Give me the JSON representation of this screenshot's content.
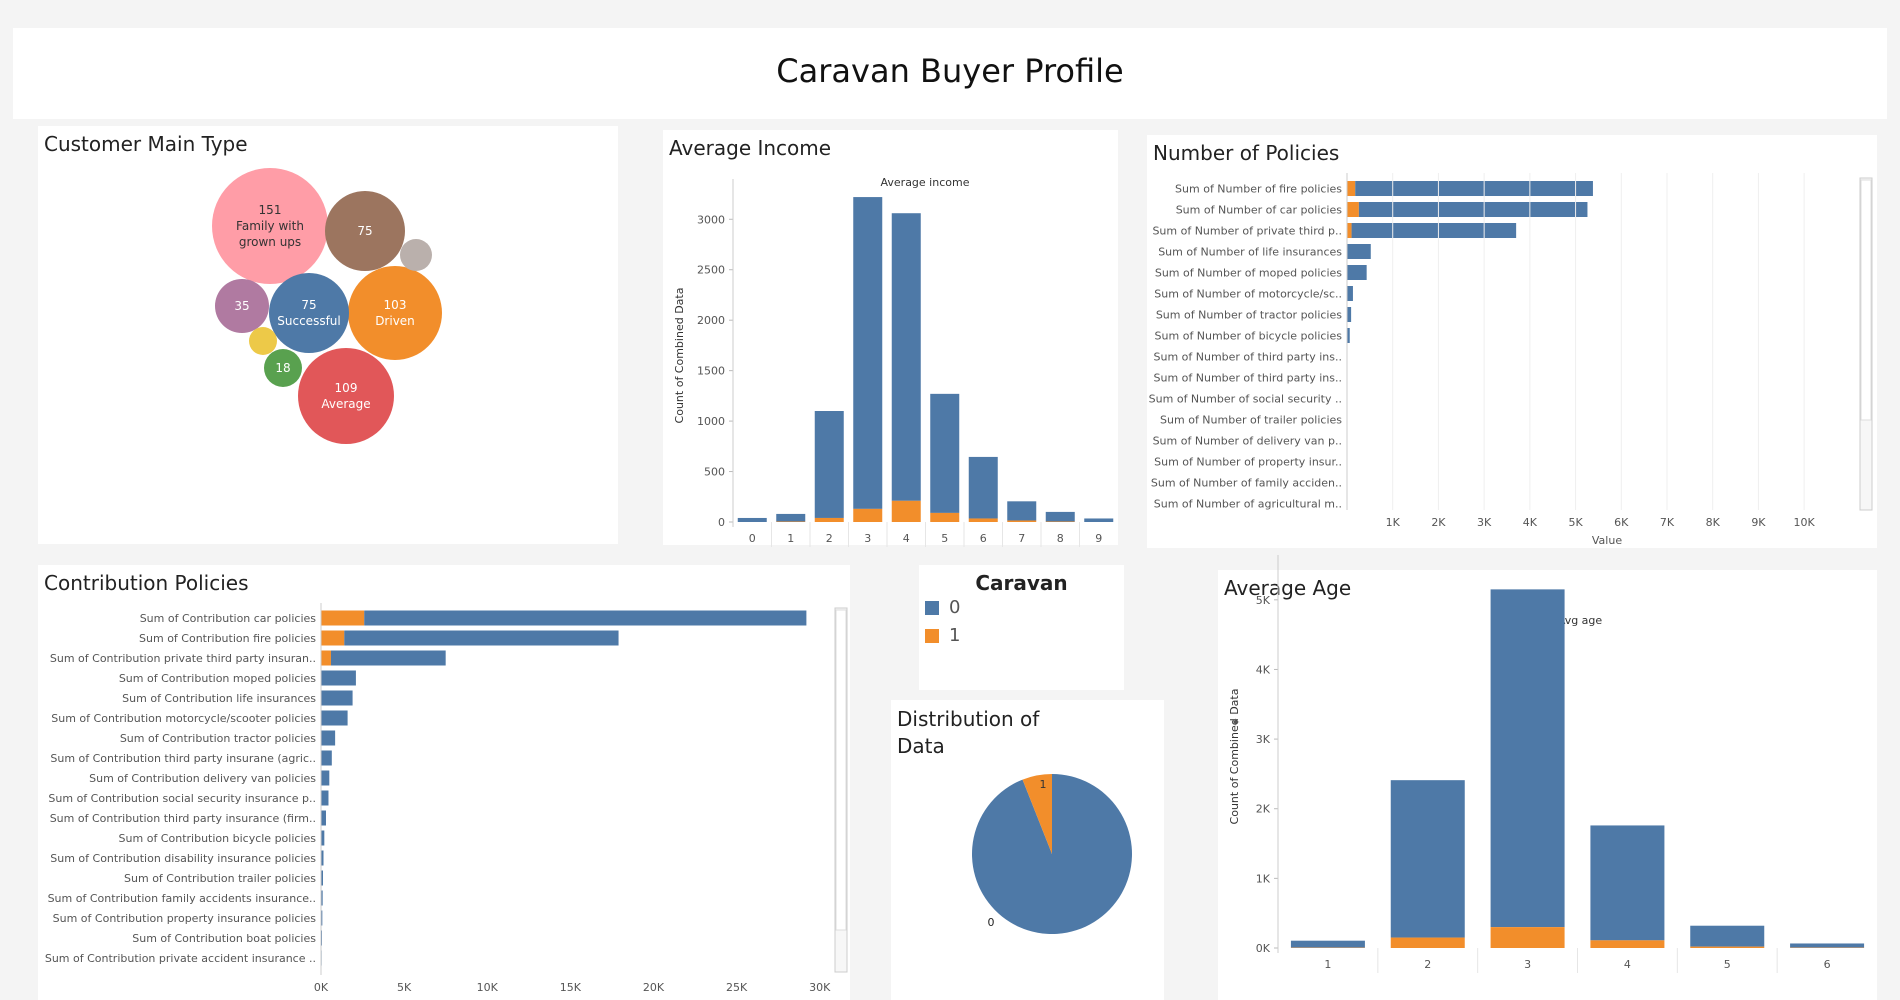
{
  "dashboard_title": "Caravan Buyer Profile",
  "colors": {
    "class0": "#4e79a7",
    "class1": "#f28e2b"
  },
  "customer_main_type": {
    "title": "Customer Main Type",
    "bubbles": [
      {
        "value": "151",
        "label": "Family with grown ups",
        "color": "#ff9da7"
      },
      {
        "value": "109",
        "label": "Average",
        "color": "#e15759"
      },
      {
        "value": "103",
        "label": "Driven",
        "color": "#f28e2b"
      },
      {
        "value": "75",
        "label": "Successful",
        "color": "#4e79a7"
      },
      {
        "value": "75",
        "label": "",
        "color": "#9c755f"
      },
      {
        "value": "35",
        "label": "",
        "color": "#b07aa1"
      },
      {
        "value": "18",
        "label": "",
        "color": "#59a14f"
      },
      {
        "value": "",
        "label": "",
        "color": "#edc948"
      },
      {
        "value": "",
        "label": "",
        "color": "#bab0ac"
      }
    ]
  },
  "average_income": {
    "title": "Average Income",
    "chart_data": {
      "type": "bar",
      "stacked": true,
      "title": "Average income",
      "ylabel": "Count of Combined Data",
      "categories": [
        "0",
        "1",
        "2",
        "3",
        "4",
        "5",
        "6",
        "7",
        "8",
        "9"
      ],
      "series": [
        {
          "name": "0",
          "values": [
            40,
            75,
            1060,
            3090,
            2850,
            1180,
            610,
            190,
            95,
            35
          ]
        },
        {
          "name": "1",
          "values": [
            0,
            5,
            40,
            130,
            210,
            90,
            35,
            15,
            5,
            0
          ]
        }
      ],
      "ylim": [
        0,
        3300
      ],
      "yticks": [
        "0",
        "500",
        "1000",
        "1500",
        "2000",
        "2500",
        "3000"
      ]
    }
  },
  "number_of_policies": {
    "title": "Number of Policies",
    "chart_data": {
      "type": "bar",
      "orientation": "horizontal",
      "stacked": true,
      "xlabel": "Value",
      "categories": [
        "Sum of Number of fire policies",
        "Sum of Number of car policies",
        "Sum of Number of private third p..",
        "Sum of Number of life insurances",
        "Sum of Number of moped policies",
        "Sum of Number of motorcycle/sc..",
        "Sum of Number of tractor policies",
        "Sum of Number of bicycle policies",
        "Sum of Number of third party ins..",
        "Sum of Number of third party ins..",
        "Sum of Number of social security ..",
        "Sum of Number of trailer policies",
        "Sum of Number of delivery van p..",
        "Sum of Number of property insur..",
        "Sum of Number of family acciden..",
        "Sum of Number of agricultural m.."
      ],
      "series": [
        {
          "name": "1",
          "values": [
            180,
            260,
            100,
            0,
            0,
            0,
            0,
            0,
            0,
            0,
            0,
            0,
            0,
            0,
            0,
            0
          ]
        },
        {
          "name": "0",
          "values": [
            5200,
            5000,
            3600,
            520,
            430,
            130,
            90,
            60,
            0,
            0,
            0,
            0,
            0,
            0,
            0,
            0
          ]
        }
      ],
      "xlim": [
        0,
        10500
      ],
      "xticks": [
        "1K",
        "2K",
        "3K",
        "4K",
        "5K",
        "6K",
        "7K",
        "8K",
        "9K",
        "10K"
      ]
    }
  },
  "contribution_policies": {
    "title": "Contribution Policies",
    "chart_data": {
      "type": "bar",
      "orientation": "horizontal",
      "stacked": true,
      "categories": [
        "Sum of Contribution car policies",
        "Sum of Contribution fire policies",
        "Sum of Contribution private third party insuran..",
        "Sum of Contribution moped policies",
        "Sum of Contribution life insurances",
        "Sum of Contribution motorcycle/scooter policies",
        "Sum of Contribution tractor policies",
        "Sum of Contribution third party insurane (agric..",
        "Sum of Contribution delivery van policies",
        "Sum of Contribution social security insurance p..",
        "Sum of Contribution third party insurance (firm..",
        "Sum of Contribution bicycle policies",
        "Sum of Contribution disability insurance policies",
        "Sum of Contribution trailer policies",
        "Sum of Contribution family accidents insurance..",
        "Sum of Contribution property insurance policies",
        "Sum of Contribution boat policies",
        "Sum of Contribution private accident insurance .."
      ],
      "series": [
        {
          "name": "1",
          "values": [
            2600,
            1400,
            600,
            0,
            0,
            0,
            0,
            0,
            0,
            0,
            0,
            0,
            0,
            0,
            0,
            0,
            0,
            0
          ]
        },
        {
          "name": "0",
          "values": [
            26600,
            16500,
            6900,
            2100,
            1900,
            1600,
            850,
            650,
            500,
            450,
            300,
            200,
            150,
            120,
            100,
            80,
            60,
            40
          ]
        }
      ],
      "xlim": [
        0,
        30500
      ],
      "xticks": [
        "0K",
        "5K",
        "10K",
        "15K",
        "20K",
        "25K",
        "30K"
      ]
    }
  },
  "caravan_legend": {
    "title": "Caravan",
    "items": [
      {
        "label": "0",
        "color": "#4e79a7"
      },
      {
        "label": "1",
        "color": "#f28e2b"
      }
    ]
  },
  "distribution": {
    "title": "Distribution of Data",
    "chart_data": {
      "type": "pie",
      "categories": [
        "0",
        "1"
      ],
      "values": [
        94,
        6
      ]
    }
  },
  "average_age": {
    "title": "Average Age",
    "chart_data": {
      "type": "bar",
      "stacked": true,
      "title": "Avg age",
      "ylabel": "Count of Combined Data",
      "categories": [
        "1",
        "2",
        "3",
        "4",
        "5",
        "6"
      ],
      "series": [
        {
          "name": "0",
          "values": [
            100,
            2260,
            4850,
            1650,
            300,
            60
          ]
        },
        {
          "name": "1",
          "values": [
            5,
            150,
            300,
            110,
            20,
            5
          ]
        }
      ],
      "ylim": [
        0,
        5500
      ],
      "yticks": [
        "0K",
        "1K",
        "2K",
        "3K",
        "4K",
        "5K"
      ]
    }
  }
}
